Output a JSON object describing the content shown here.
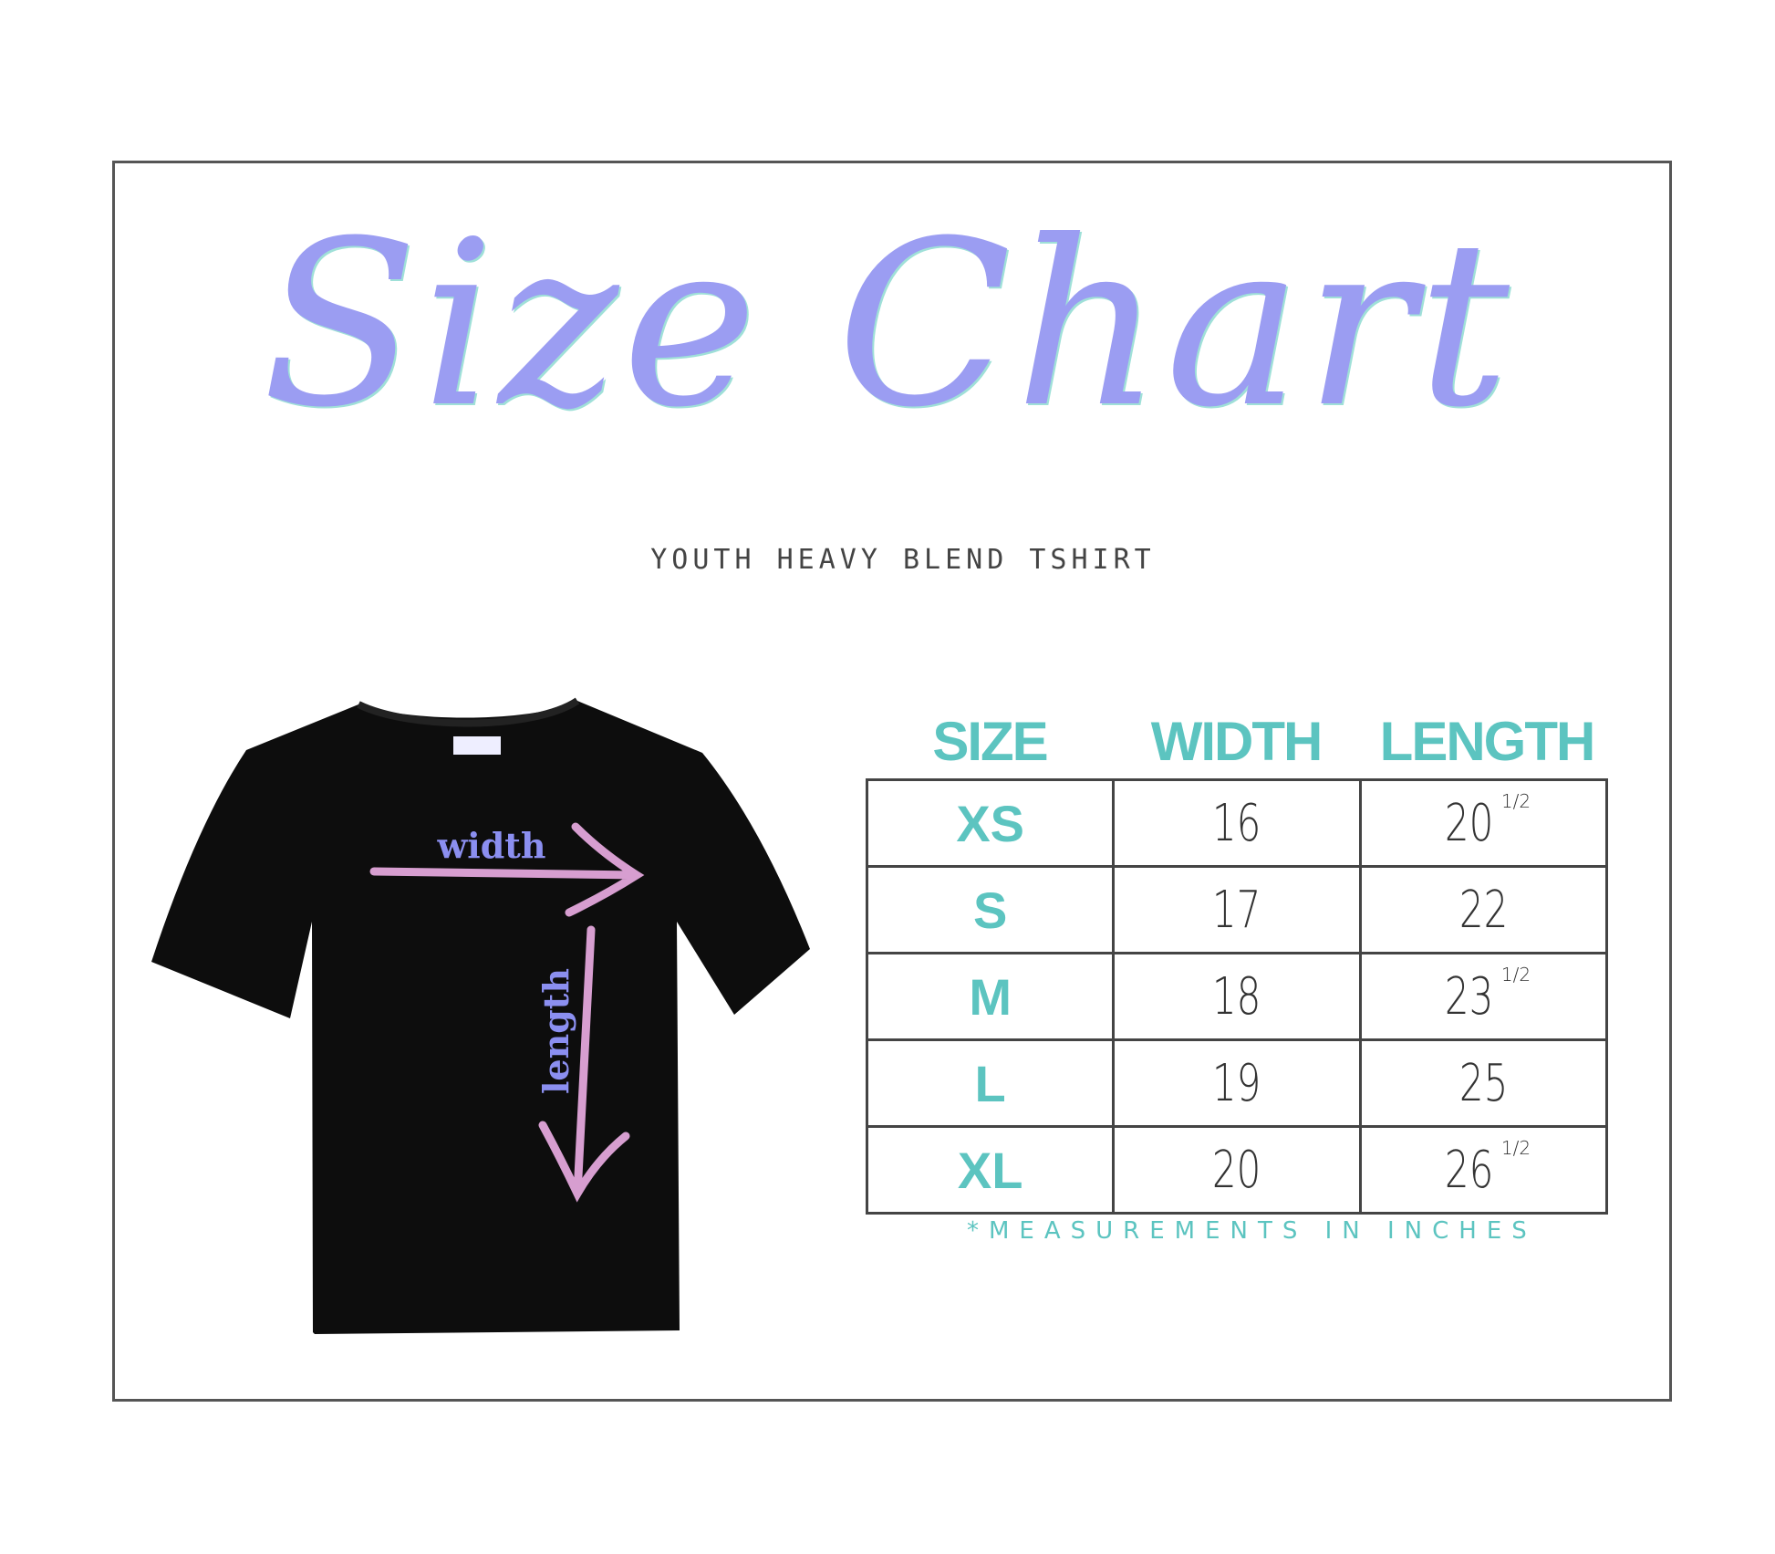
{
  "title": "Size Chart",
  "subtitle": "YOUTH HEAVY BLEND TSHIRT",
  "diagram": {
    "width_label": "width",
    "length_label": "length"
  },
  "table": {
    "headers": [
      "SIZE",
      "WIDTH",
      "LENGTH"
    ],
    "rows": [
      {
        "size": "XS",
        "width": "16",
        "length": "20",
        "fraction": "1/2"
      },
      {
        "size": "S",
        "width": "17",
        "length": "22",
        "fraction": ""
      },
      {
        "size": "M",
        "width": "18",
        "length": "23",
        "fraction": "1/2"
      },
      {
        "size": "L",
        "width": "19",
        "length": "25",
        "fraction": ""
      },
      {
        "size": "XL",
        "width": "20",
        "length": "26",
        "fraction": "1/2"
      }
    ]
  },
  "note": "*MEASUREMENTS IN INCHES",
  "colors": {
    "title": "#9b9df2",
    "teal": "#5cc4c0",
    "arrow": "#d79ed0",
    "shirt": "#0d0d0d"
  }
}
